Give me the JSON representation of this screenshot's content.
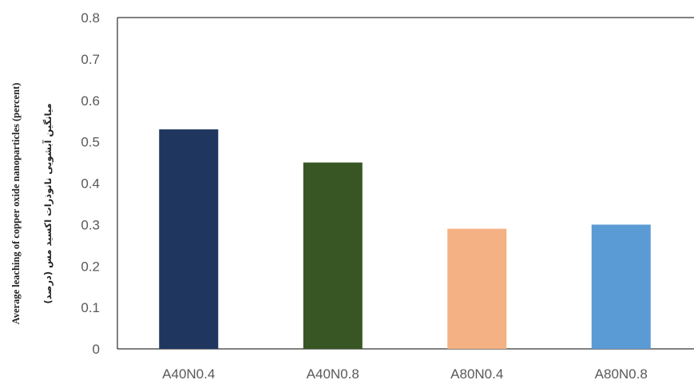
{
  "chart_data": {
    "type": "bar",
    "categories": [
      "A40N0.4",
      "A40N0.8",
      "A80N0.4",
      "A80N0.8"
    ],
    "values": [
      0.53,
      0.45,
      0.29,
      0.3
    ],
    "colors": [
      "#1f375f",
      "#375623",
      "#f4b183",
      "#5b9bd5"
    ],
    "ylabel": "Average leaching of copper oxide nanoparticles (percent)",
    "ylabel_secondary": "میانگین آبشویی نانوذرات اکسید مس (درصد)",
    "ylim": [
      0,
      0.8
    ],
    "yticks": [
      "0",
      "0.1",
      "0.2",
      "0.3",
      "0.4",
      "0.5",
      "0.6",
      "0.7",
      "0.8"
    ],
    "grid": false,
    "legend": "none"
  }
}
